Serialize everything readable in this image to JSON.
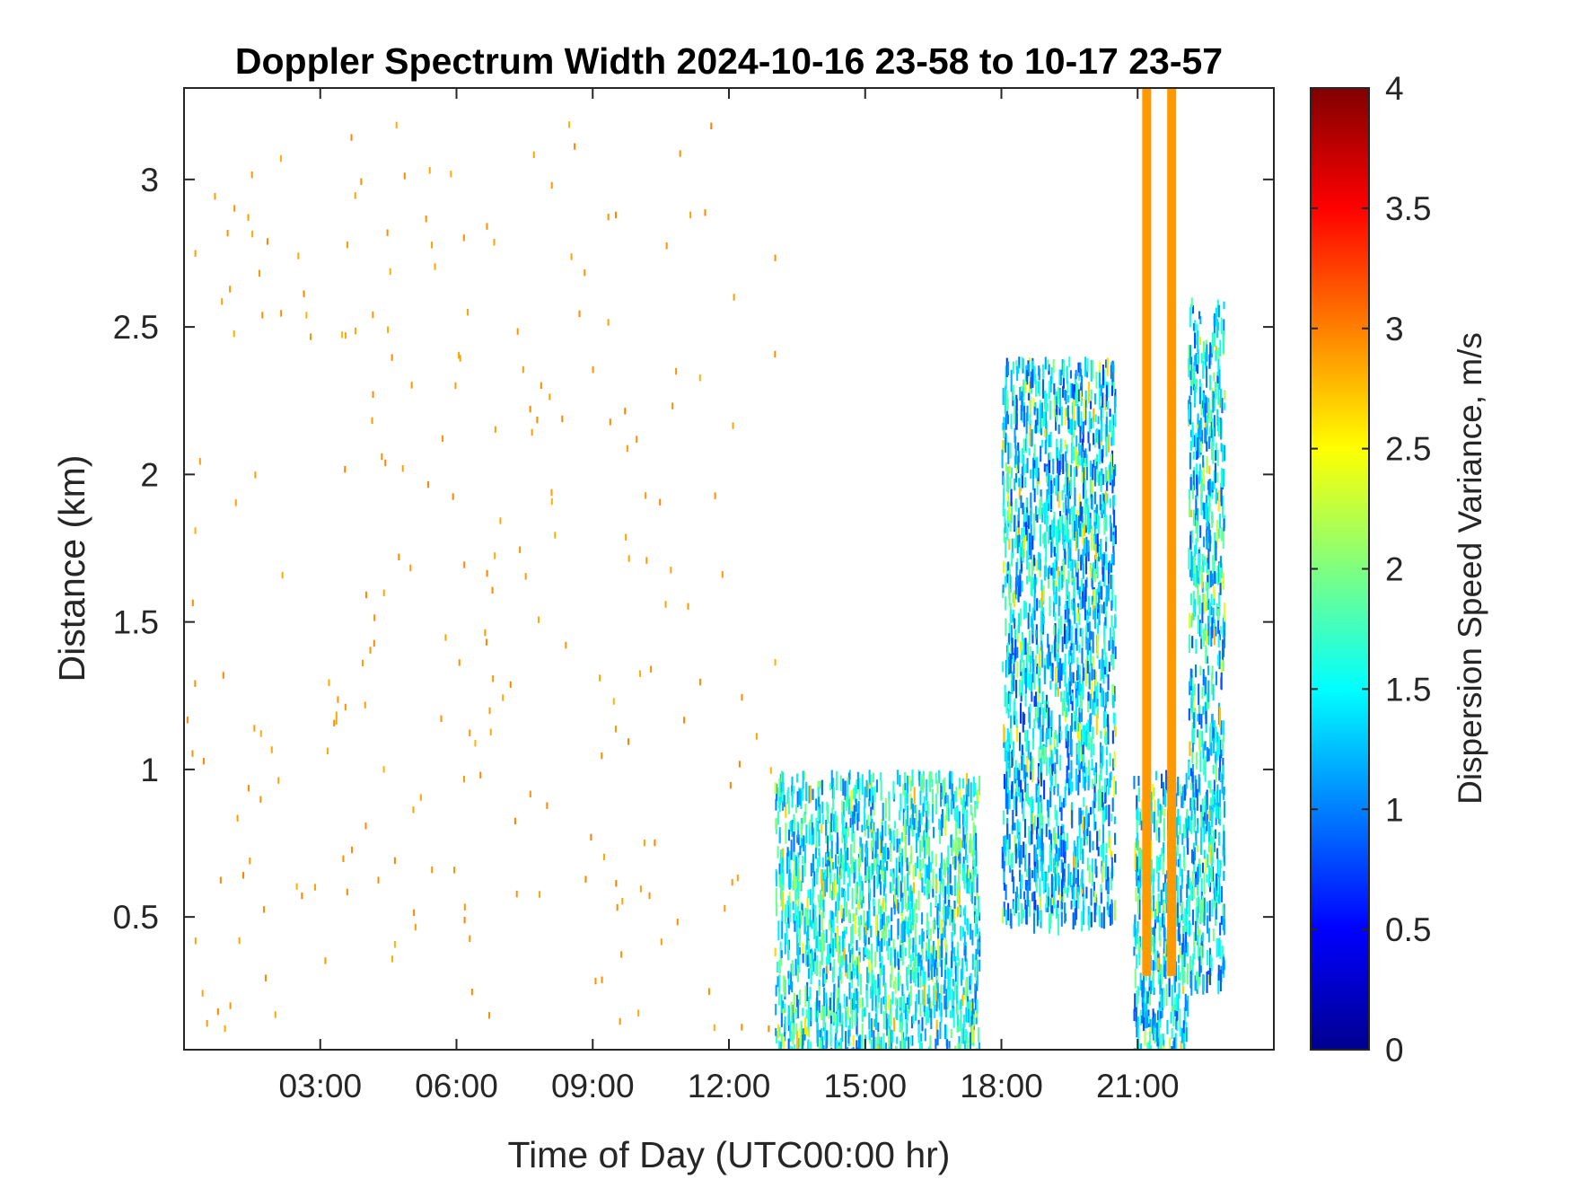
{
  "chart_data": {
    "type": "heatmap",
    "title": "Doppler Spectrum Width 2024-10-16 23-58 to 10-17 23-57",
    "xlabel": "Time of Day (UTC00:00 hr)",
    "ylabel": "Distance (km)",
    "x_ticks": [
      {
        "value": 3,
        "label": "03:00"
      },
      {
        "value": 6,
        "label": "06:00"
      },
      {
        "value": 9,
        "label": "09:00"
      },
      {
        "value": 12,
        "label": "12:00"
      },
      {
        "value": 15,
        "label": "15:00"
      },
      {
        "value": 18,
        "label": "18:00"
      },
      {
        "value": 21,
        "label": "21:00"
      }
    ],
    "y_ticks": [
      {
        "value": 0.5,
        "label": "0.5"
      },
      {
        "value": 1,
        "label": "1"
      },
      {
        "value": 1.5,
        "label": "1.5"
      },
      {
        "value": 2,
        "label": "2"
      },
      {
        "value": 2.5,
        "label": "2.5"
      },
      {
        "value": 3,
        "label": "3"
      }
    ],
    "xlim": [
      0,
      24
    ],
    "ylim": [
      0.05,
      3.31
    ],
    "grid": false,
    "colorbar": {
      "label": "Dispersion Speed Variance, m/s",
      "colormap": "jet",
      "range": [
        0,
        4
      ],
      "ticks": [
        {
          "value": 0,
          "label": "0"
        },
        {
          "value": 0.5,
          "label": "0.5"
        },
        {
          "value": 1,
          "label": "1"
        },
        {
          "value": 1.5,
          "label": "1.5"
        },
        {
          "value": 2,
          "label": "2"
        },
        {
          "value": 2.5,
          "label": "2.5"
        },
        {
          "value": 3,
          "label": "3"
        },
        {
          "value": 3.5,
          "label": "3.5"
        },
        {
          "value": 4,
          "label": "4"
        }
      ]
    },
    "regions": [
      {
        "description": "sparse scattered returns",
        "x_range": [
          0,
          13
        ],
        "y_range": [
          0.1,
          3.2
        ],
        "value_approx": 2.9
      },
      {
        "description": "low-level returns",
        "x_range": [
          13,
          17.5
        ],
        "y_range": [
          0.05,
          1.0
        ],
        "value_approx": 1.5
      },
      {
        "description": "main echo band",
        "x_range": [
          18,
          20.5
        ],
        "y_range": [
          0.5,
          2.4
        ],
        "value_approx": 1.3
      },
      {
        "description": "lower plume",
        "x_range": [
          20.9,
          22.1
        ],
        "y_range": [
          0.05,
          1.0
        ],
        "value_approx": 1.4
      },
      {
        "description": "rising plume",
        "x_range": [
          22.1,
          22.9
        ],
        "y_range": [
          0.3,
          2.6
        ],
        "value_approx": 1.4
      },
      {
        "description": "saturated vertical stripes",
        "x_values": [
          21.2,
          21.75
        ],
        "y_range": [
          0.3,
          3.31
        ],
        "value_approx": 2.9
      }
    ]
  }
}
